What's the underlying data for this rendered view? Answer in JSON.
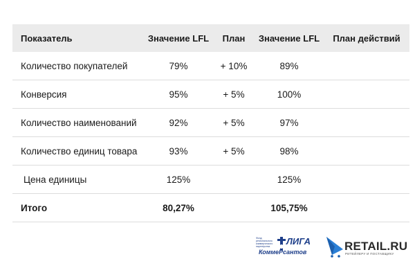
{
  "table": {
    "headers": [
      "Показатель",
      "Значение LFL",
      "План",
      "Значение LFL",
      "План действий"
    ],
    "rows": [
      [
        "Количество покупателей",
        "79%",
        "+ 10%",
        "89%",
        ""
      ],
      [
        "Конверсия",
        "95%",
        "+ 5%",
        "100%",
        ""
      ],
      [
        "Количество наименований",
        "92%",
        "+ 5%",
        "97%",
        ""
      ],
      [
        "Количество единиц товара",
        "93%",
        "+ 5%",
        "98%",
        ""
      ],
      [
        "Цена единицы",
        "125%",
        "",
        "125%",
        ""
      ]
    ],
    "total": [
      "Итого",
      "80,27%",
      "",
      "105,75%",
      ""
    ]
  },
  "logos": {
    "liga_small": "Фонд регионального коммерческого партнерства",
    "liga_word": "ЛИГА",
    "liga_line2": "КоммеРсантов",
    "retail_word": "RETAIL.RU",
    "retail_tagline": "РИТЕЙЛЕРУ И ПОСТАВЩИКУ",
    "liga_color": "#1e3f8a",
    "retail_accent": "#2a7fd6"
  }
}
